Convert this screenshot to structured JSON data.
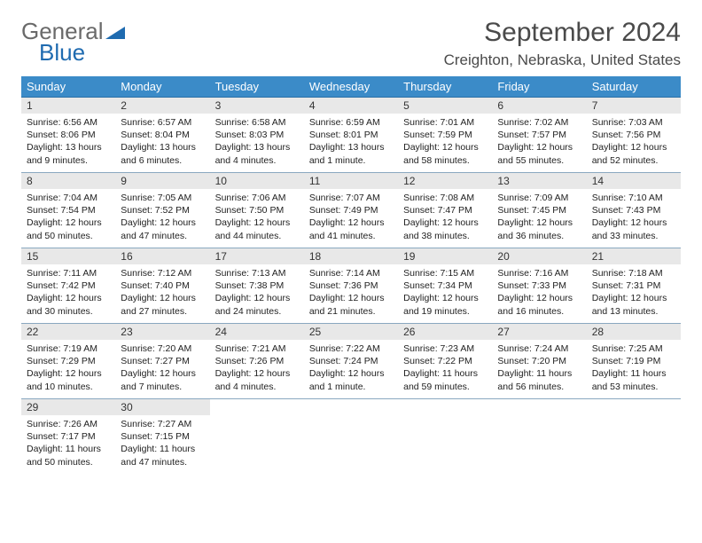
{
  "brand": {
    "part1": "General",
    "part2": "Blue"
  },
  "title": "September 2024",
  "location": "Creighton, Nebraska, United States",
  "colors": {
    "header_bg": "#3b8bc8",
    "header_text": "#ffffff",
    "row_divider": "#8aa8c0",
    "daynum_bg": "#e8e8e8",
    "brand_gray": "#6a6a6a",
    "brand_blue": "#1f6bb0",
    "page_bg": "#ffffff",
    "text": "#222222"
  },
  "fonts": {
    "title_pt": 30,
    "location_pt": 17,
    "header_pt": 13,
    "daynum_pt": 12,
    "body_pt": 10.5
  },
  "weekday_labels": [
    "Sunday",
    "Monday",
    "Tuesday",
    "Wednesday",
    "Thursday",
    "Friday",
    "Saturday"
  ],
  "weeks": [
    [
      {
        "num": "1",
        "sunrise": "6:56 AM",
        "sunset": "8:06 PM",
        "daylight": "13 hours and 9 minutes."
      },
      {
        "num": "2",
        "sunrise": "6:57 AM",
        "sunset": "8:04 PM",
        "daylight": "13 hours and 6 minutes."
      },
      {
        "num": "3",
        "sunrise": "6:58 AM",
        "sunset": "8:03 PM",
        "daylight": "13 hours and 4 minutes."
      },
      {
        "num": "4",
        "sunrise": "6:59 AM",
        "sunset": "8:01 PM",
        "daylight": "13 hours and 1 minute."
      },
      {
        "num": "5",
        "sunrise": "7:01 AM",
        "sunset": "7:59 PM",
        "daylight": "12 hours and 58 minutes."
      },
      {
        "num": "6",
        "sunrise": "7:02 AM",
        "sunset": "7:57 PM",
        "daylight": "12 hours and 55 minutes."
      },
      {
        "num": "7",
        "sunrise": "7:03 AM",
        "sunset": "7:56 PM",
        "daylight": "12 hours and 52 minutes."
      }
    ],
    [
      {
        "num": "8",
        "sunrise": "7:04 AM",
        "sunset": "7:54 PM",
        "daylight": "12 hours and 50 minutes."
      },
      {
        "num": "9",
        "sunrise": "7:05 AM",
        "sunset": "7:52 PM",
        "daylight": "12 hours and 47 minutes."
      },
      {
        "num": "10",
        "sunrise": "7:06 AM",
        "sunset": "7:50 PM",
        "daylight": "12 hours and 44 minutes."
      },
      {
        "num": "11",
        "sunrise": "7:07 AM",
        "sunset": "7:49 PM",
        "daylight": "12 hours and 41 minutes."
      },
      {
        "num": "12",
        "sunrise": "7:08 AM",
        "sunset": "7:47 PM",
        "daylight": "12 hours and 38 minutes."
      },
      {
        "num": "13",
        "sunrise": "7:09 AM",
        "sunset": "7:45 PM",
        "daylight": "12 hours and 36 minutes."
      },
      {
        "num": "14",
        "sunrise": "7:10 AM",
        "sunset": "7:43 PM",
        "daylight": "12 hours and 33 minutes."
      }
    ],
    [
      {
        "num": "15",
        "sunrise": "7:11 AM",
        "sunset": "7:42 PM",
        "daylight": "12 hours and 30 minutes."
      },
      {
        "num": "16",
        "sunrise": "7:12 AM",
        "sunset": "7:40 PM",
        "daylight": "12 hours and 27 minutes."
      },
      {
        "num": "17",
        "sunrise": "7:13 AM",
        "sunset": "7:38 PM",
        "daylight": "12 hours and 24 minutes."
      },
      {
        "num": "18",
        "sunrise": "7:14 AM",
        "sunset": "7:36 PM",
        "daylight": "12 hours and 21 minutes."
      },
      {
        "num": "19",
        "sunrise": "7:15 AM",
        "sunset": "7:34 PM",
        "daylight": "12 hours and 19 minutes."
      },
      {
        "num": "20",
        "sunrise": "7:16 AM",
        "sunset": "7:33 PM",
        "daylight": "12 hours and 16 minutes."
      },
      {
        "num": "21",
        "sunrise": "7:18 AM",
        "sunset": "7:31 PM",
        "daylight": "12 hours and 13 minutes."
      }
    ],
    [
      {
        "num": "22",
        "sunrise": "7:19 AM",
        "sunset": "7:29 PM",
        "daylight": "12 hours and 10 minutes."
      },
      {
        "num": "23",
        "sunrise": "7:20 AM",
        "sunset": "7:27 PM",
        "daylight": "12 hours and 7 minutes."
      },
      {
        "num": "24",
        "sunrise": "7:21 AM",
        "sunset": "7:26 PM",
        "daylight": "12 hours and 4 minutes."
      },
      {
        "num": "25",
        "sunrise": "7:22 AM",
        "sunset": "7:24 PM",
        "daylight": "12 hours and 1 minute."
      },
      {
        "num": "26",
        "sunrise": "7:23 AM",
        "sunset": "7:22 PM",
        "daylight": "11 hours and 59 minutes."
      },
      {
        "num": "27",
        "sunrise": "7:24 AM",
        "sunset": "7:20 PM",
        "daylight": "11 hours and 56 minutes."
      },
      {
        "num": "28",
        "sunrise": "7:25 AM",
        "sunset": "7:19 PM",
        "daylight": "11 hours and 53 minutes."
      }
    ],
    [
      {
        "num": "29",
        "sunrise": "7:26 AM",
        "sunset": "7:17 PM",
        "daylight": "11 hours and 50 minutes."
      },
      {
        "num": "30",
        "sunrise": "7:27 AM",
        "sunset": "7:15 PM",
        "daylight": "11 hours and 47 minutes."
      },
      null,
      null,
      null,
      null,
      null
    ]
  ]
}
